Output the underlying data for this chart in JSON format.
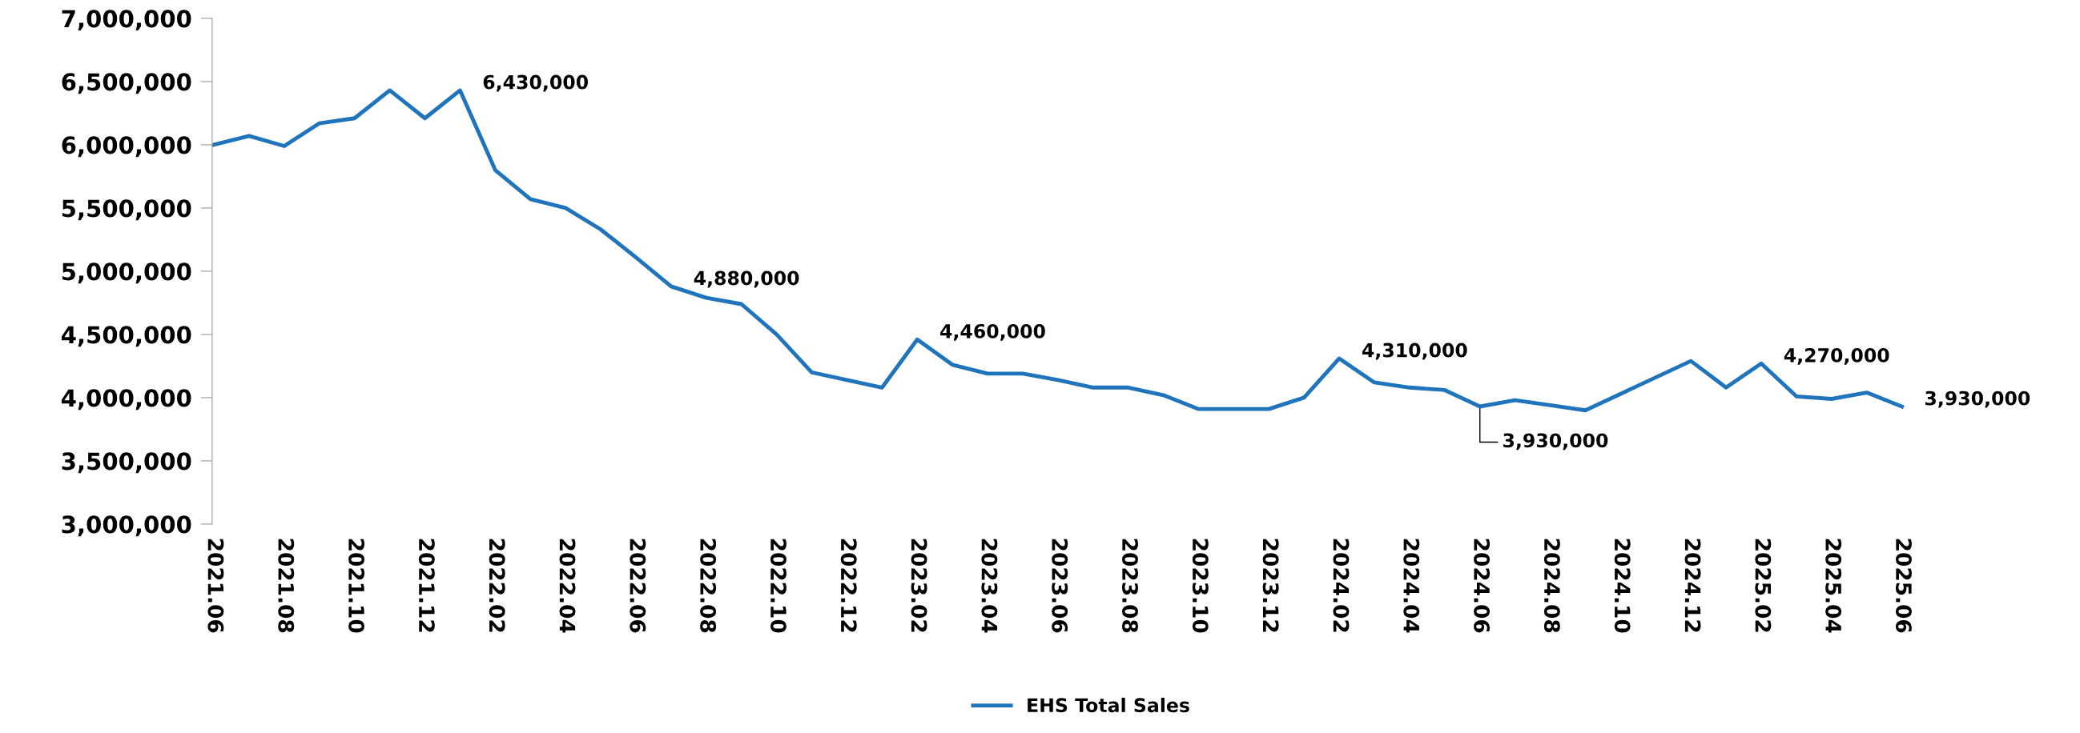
{
  "chart_data": {
    "type": "line",
    "categories": [
      "2021.06",
      null,
      "2021.08",
      null,
      "2021.10",
      null,
      "2021.12",
      null,
      "2022.02",
      null,
      "2022.04",
      null,
      "2022.06",
      null,
      "2022.08",
      null,
      "2022.10",
      null,
      "2022.12",
      null,
      "2023.02",
      null,
      "2023.04",
      null,
      "2023.06",
      null,
      "2023.08",
      null,
      "2023.10",
      null,
      "2023.12",
      null,
      "2024.02",
      null,
      "2024.04",
      null,
      "2024.06",
      null,
      "2024.08",
      null,
      "2024.10",
      null,
      "2024.12",
      null,
      "2025.02",
      null,
      "2025.04",
      null,
      "2025.06"
    ],
    "series": [
      {
        "name": "EHS Total Sales",
        "color": "#1f74bb",
        "values": [
          6000000,
          6070000,
          5990000,
          6170000,
          6210000,
          6430000,
          6210000,
          6430000,
          5800000,
          5570000,
          5500000,
          5330000,
          5110000,
          4880000,
          4790000,
          4740000,
          4500000,
          4200000,
          4140000,
          4080000,
          4460000,
          4260000,
          4190000,
          4190000,
          4140000,
          4080000,
          4080000,
          4020000,
          3910000,
          3910000,
          3910000,
          4000000,
          4310000,
          4120000,
          4080000,
          4060000,
          3930000,
          3980000,
          3940000,
          3900000,
          4030000,
          4160000,
          4290000,
          4080000,
          4270000,
          4010000,
          3990000,
          4040000,
          3930000
        ],
        "value_labels": [
          null,
          null,
          null,
          null,
          null,
          null,
          null,
          "6,430,000",
          null,
          null,
          null,
          null,
          null,
          "4,880,000",
          null,
          null,
          null,
          null,
          null,
          null,
          "4,460,000",
          null,
          null,
          null,
          null,
          null,
          null,
          null,
          null,
          null,
          null,
          null,
          "4,310,000",
          null,
          null,
          null,
          "3,930,000",
          null,
          null,
          null,
          null,
          null,
          null,
          null,
          "4,270,000",
          null,
          null,
          null,
          "3,930,000"
        ]
      }
    ],
    "ylim": [
      3000000,
      7000000
    ],
    "yticks": [
      {
        "value": 3000000,
        "label": "3,000,000"
      },
      {
        "value": 3500000,
        "label": "3,500,000"
      },
      {
        "value": 4000000,
        "label": "4,000,000"
      },
      {
        "value": 4500000,
        "label": "4,500,000"
      },
      {
        "value": 5000000,
        "label": "5,000,000"
      },
      {
        "value": 5500000,
        "label": "5,500,000"
      },
      {
        "value": 6000000,
        "label": "6,000,000"
      },
      {
        "value": 6500000,
        "label": "6,500,000"
      },
      {
        "value": 7000000,
        "label": "7,000,000"
      }
    ],
    "grid": false,
    "legend": "bottom",
    "marker": "none",
    "line_style": "solid"
  }
}
